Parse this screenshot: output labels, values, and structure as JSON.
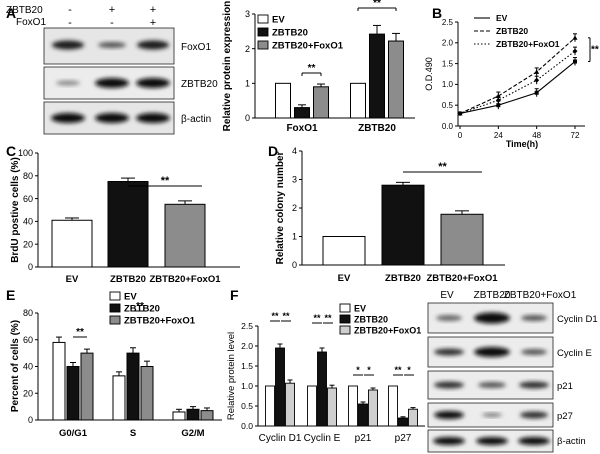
{
  "panels": {
    "A": "A",
    "B": "B",
    "C": "C",
    "D": "D",
    "E": "E",
    "F": "F"
  },
  "blotA": {
    "row_labels": [
      "ZBTB20",
      "FoxO1"
    ],
    "row_signs": [
      [
        "-",
        "+",
        "+"
      ],
      [
        "-",
        "-",
        "+"
      ]
    ],
    "bands": [
      "FoxO1",
      "ZBTB20",
      "β-actin"
    ]
  },
  "blotF": {
    "lanes": [
      "EV",
      "ZBTB20",
      "ZBTB20+FoxO1"
    ],
    "bands": [
      "Cyclin D1",
      "Cyclin E",
      "p21",
      "p27",
      "β-actin"
    ]
  },
  "sig": "**",
  "sig1": "*",
  "colors": {
    "ev": "#ffffff",
    "zbtb20": "#111111",
    "foxo1": "#8c8c8c",
    "light": "#cfcfcf"
  },
  "chart_data": [
    {
      "id": "A-bar",
      "type": "bar",
      "ylabel": "Relative protein expression",
      "ylim": [
        0,
        3
      ],
      "yticks": [
        "0",
        "1",
        "2",
        "3"
      ],
      "categories": [
        "FoxO1",
        "ZBTB20"
      ],
      "series": [
        {
          "name": "EV",
          "values": [
            1.0,
            1.0
          ],
          "err": [
            0,
            0
          ]
        },
        {
          "name": "ZBTB20",
          "values": [
            0.3,
            2.42
          ],
          "err": [
            0.08,
            0.25
          ]
        },
        {
          "name": "ZBTB20+FoxO1",
          "values": [
            0.9,
            2.22
          ],
          "err": [
            0.08,
            0.22
          ]
        }
      ],
      "legend": "top-left"
    },
    {
      "id": "B-line",
      "type": "line",
      "xlabel": "Time(h)",
      "ylabel": "O.D.490",
      "ylim": [
        0,
        2.5
      ],
      "yticks": [
        "0.0",
        "0.5",
        "1.0",
        "1.5",
        "2.0",
        "2.5"
      ],
      "x": [
        0,
        24,
        48,
        72
      ],
      "xticks": [
        "0",
        "24",
        "48",
        "72"
      ],
      "series": [
        {
          "name": "EV",
          "values": [
            0.3,
            0.5,
            0.8,
            1.55
          ]
        },
        {
          "name": "ZBTB20",
          "values": [
            0.3,
            0.72,
            1.3,
            2.12
          ]
        },
        {
          "name": "ZBTB20+FoxO1",
          "values": [
            0.3,
            0.62,
            1.1,
            1.8
          ]
        }
      ],
      "legend": "top-left"
    },
    {
      "id": "C-bar",
      "type": "bar",
      "ylabel": "BrdU postive cells (%)",
      "ylim": [
        0,
        100
      ],
      "yticks": [
        "0",
        "20",
        "40",
        "60",
        "80",
        "100"
      ],
      "categories": [
        "EV",
        "ZBTB20",
        "ZBTB20+FoxO1"
      ],
      "values": [
        41,
        75,
        55
      ],
      "err": [
        2,
        3,
        3
      ]
    },
    {
      "id": "D-bar",
      "type": "bar",
      "ylabel": "Relative colony number",
      "ylim": [
        0,
        4
      ],
      "yticks": [
        "0",
        "1",
        "2",
        "3",
        "4"
      ],
      "categories": [
        "EV",
        "ZBTB20",
        "ZBTB20+FoxO1"
      ],
      "values": [
        1.0,
        2.8,
        1.78
      ],
      "err": [
        0,
        0.1,
        0.12
      ]
    },
    {
      "id": "E-bar",
      "type": "bar",
      "ylabel": "Percent of cells (%)",
      "ylim": [
        0,
        80
      ],
      "yticks": [
        "0",
        "20",
        "40",
        "60",
        "80"
      ],
      "categories": [
        "G0/G1",
        "S",
        "G2/M"
      ],
      "series": [
        {
          "name": "EV",
          "values": [
            58,
            33,
            6
          ],
          "err": [
            4,
            3,
            2
          ]
        },
        {
          "name": "ZBTB20",
          "values": [
            40,
            50,
            8
          ],
          "err": [
            3,
            4,
            2
          ]
        },
        {
          "name": "ZBTB20+FoxO1",
          "values": [
            50,
            40,
            7
          ],
          "err": [
            3,
            4,
            2
          ]
        }
      ],
      "legend": "top-right"
    },
    {
      "id": "F-bar",
      "type": "bar",
      "ylabel": "Relative protein level",
      "ylim": [
        0,
        2.5
      ],
      "yticks": [
        "0.0",
        "0.5",
        "1.0",
        "1.5",
        "2.0",
        "2.5"
      ],
      "categories": [
        "Cyclin D1",
        "Cyclin E",
        "p21",
        "p27"
      ],
      "series": [
        {
          "name": "EV",
          "values": [
            1.0,
            1.0,
            1.0,
            1.0
          ],
          "err": [
            0,
            0,
            0,
            0
          ]
        },
        {
          "name": "ZBTB20",
          "values": [
            1.95,
            1.85,
            0.55,
            0.2
          ],
          "err": [
            0.1,
            0.1,
            0.05,
            0.03
          ]
        },
        {
          "name": "ZBTB20+FoxO1",
          "values": [
            1.07,
            0.95,
            0.9,
            0.42
          ],
          "err": [
            0.08,
            0.07,
            0.05,
            0.04
          ]
        }
      ],
      "legend": "top-right"
    }
  ]
}
